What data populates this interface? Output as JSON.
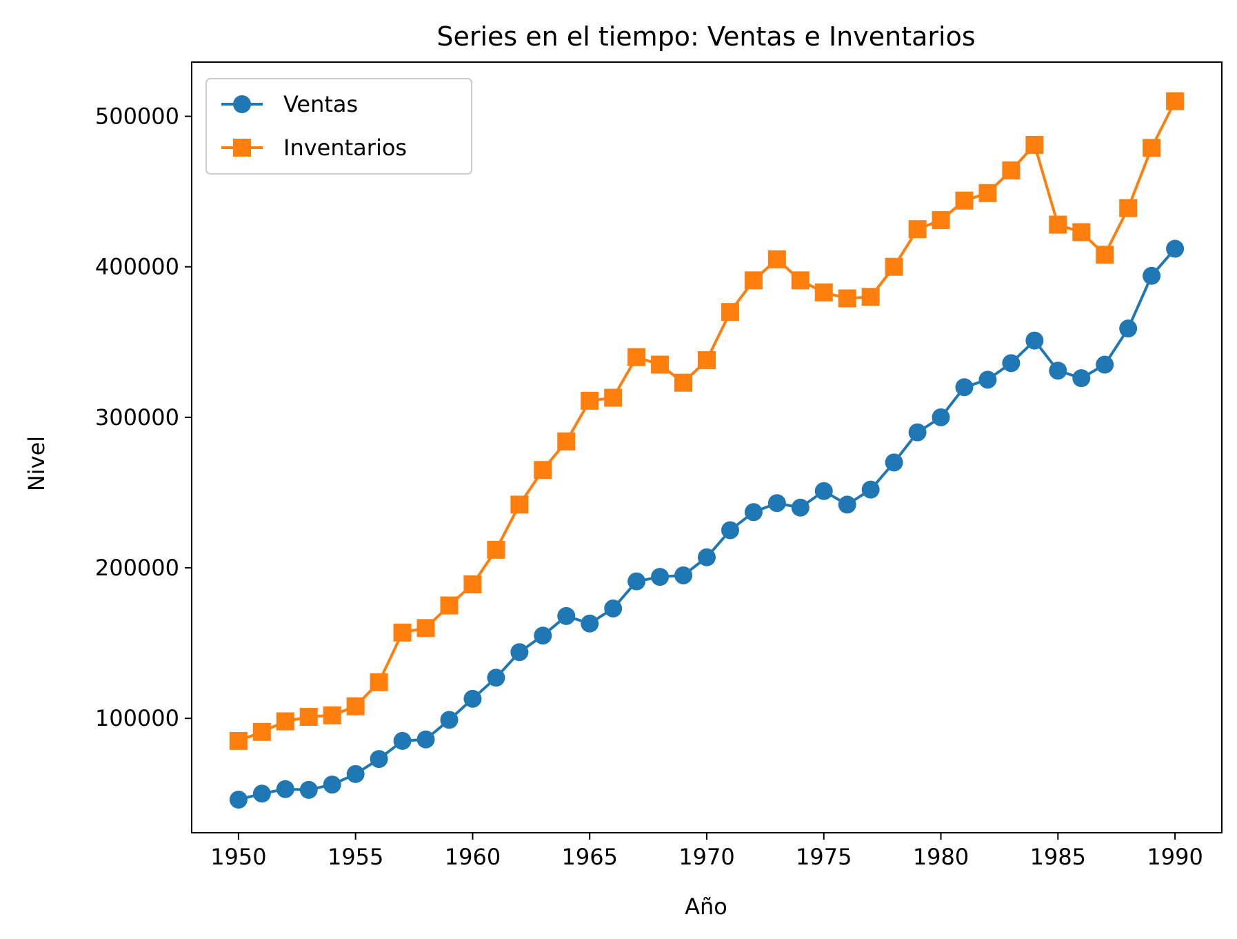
{
  "chart_data": {
    "type": "line",
    "title": "Series en el tiempo: Ventas e Inventarios",
    "xlabel": "Año",
    "ylabel": "Nivel",
    "xlim": [
      1948,
      1992
    ],
    "ylim": [
      24000,
      536000
    ],
    "xticks": [
      1950,
      1955,
      1960,
      1965,
      1970,
      1975,
      1980,
      1985,
      1990
    ],
    "yticks": [
      100000,
      200000,
      300000,
      400000,
      500000
    ],
    "grid": false,
    "legend_position": "upper left",
    "x": [
      1950,
      1951,
      1952,
      1953,
      1954,
      1955,
      1956,
      1957,
      1958,
      1959,
      1960,
      1961,
      1962,
      1963,
      1964,
      1965,
      1966,
      1967,
      1968,
      1969,
      1970,
      1971,
      1972,
      1973,
      1974,
      1975,
      1976,
      1977,
      1978,
      1979,
      1980,
      1981,
      1982,
      1983,
      1984,
      1985,
      1986,
      1987,
      1988,
      1989,
      1990
    ],
    "series": [
      {
        "name": "Ventas",
        "color": "#1f77b4",
        "marker": "circle",
        "values": [
          46000,
          50000,
          53000,
          52500,
          56000,
          63000,
          73000,
          85000,
          86000,
          99000,
          113000,
          127000,
          144000,
          155000,
          168000,
          163000,
          173000,
          191000,
          194000,
          195000,
          207000,
          225000,
          237000,
          243000,
          240000,
          251000,
          242000,
          252000,
          270000,
          290000,
          300000,
          320000,
          325000,
          336000,
          351000,
          331000,
          326000,
          335000,
          359000,
          394000,
          412000
        ]
      },
      {
        "name": "Inventarios",
        "color": "#ff7f0e",
        "marker": "square",
        "values": [
          85000,
          91000,
          98000,
          101000,
          102000,
          108000,
          124000,
          157000,
          160000,
          175000,
          189000,
          212000,
          242000,
          265000,
          284000,
          311000,
          313000,
          340000,
          335000,
          323000,
          338000,
          370000,
          391000,
          405000,
          391000,
          383000,
          379000,
          380000,
          400000,
          425000,
          431000,
          444000,
          449000,
          464000,
          481000,
          428000,
          423000,
          408000,
          439000,
          479000,
          510000
        ]
      }
    ]
  }
}
